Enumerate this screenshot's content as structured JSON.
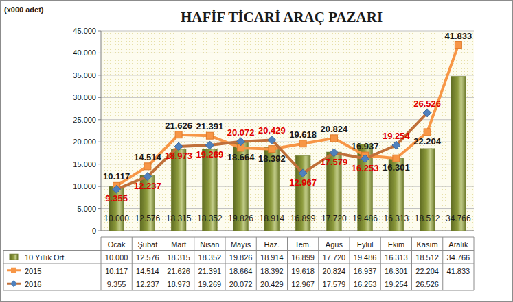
{
  "chart_data": {
    "type": "bar",
    "title": "HAFİF TİCARİ ARAÇ PAZARI",
    "y_label": "(x000 adet)",
    "categories": [
      "Ocak",
      "Şubat",
      "Mart",
      "Nisan",
      "Mayıs",
      "Haz.",
      "Tem.",
      "Ağus",
      "Eylül",
      "Ekim",
      "Kasım",
      "Aralık"
    ],
    "series": [
      {
        "name": "10 Yıllık Ort.",
        "type": "bar",
        "color": "#8c9a3c",
        "values": [
          10000,
          12576,
          18315,
          18352,
          19826,
          18914,
          16899,
          17720,
          19486,
          16313,
          18512,
          34766
        ],
        "value_labels": [
          "10.000",
          "12.576",
          "18.315",
          "18.352",
          "19.826",
          "18.914",
          "16.899",
          "17.720",
          "19.486",
          "16.313",
          "18.512",
          "34.766"
        ]
      },
      {
        "name": "2015",
        "type": "line",
        "color": "#f79646",
        "marker": "square",
        "values": [
          10117,
          14514,
          21626,
          21391,
          18664,
          18392,
          19618,
          20824,
          16937,
          16301,
          22204,
          41833
        ],
        "value_labels": [
          "10.117",
          "14.514",
          "21.626",
          "21.391",
          "18.664",
          "18.392",
          "19.618",
          "20.824",
          "16.937",
          "16.301",
          "22.204",
          "41.833"
        ]
      },
      {
        "name": "2016",
        "type": "line",
        "color": "#c0703a",
        "marker": "diamond",
        "values": [
          9355,
          12237,
          18973,
          19269,
          20072,
          20429,
          12967,
          17579,
          16253,
          19254,
          26526,
          null
        ],
        "value_labels": [
          "9.355",
          "12.237",
          "18.973",
          "19.269",
          "20.072",
          "20.429",
          "12.967",
          "17.579",
          "16.253",
          "19.254",
          "26.526",
          null
        ]
      }
    ],
    "ylim": [
      0,
      45000
    ],
    "yticks": [
      0,
      {
        "value": 5000,
        "label": "5.000"
      },
      {
        "value": 10000,
        "label": "10.000"
      },
      {
        "value": 15000,
        "label": "15.000"
      },
      {
        "value": 20000,
        "label": "20.000"
      },
      {
        "value": 25000,
        "label": "25.000"
      },
      {
        "value": 30000,
        "label": "30.000"
      },
      {
        "value": 35000,
        "label": "35.000"
      },
      {
        "value": 40000,
        "label": "40.000"
      },
      {
        "value": 45000,
        "label": "45.000"
      }
    ],
    "grid": true,
    "data_labels": true
  }
}
